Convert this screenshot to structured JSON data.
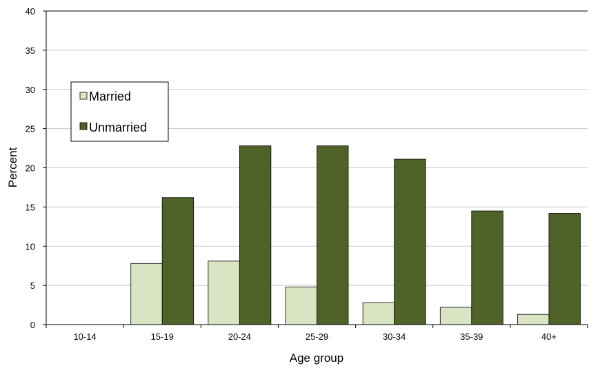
{
  "chart_data": {
    "type": "bar",
    "title": "",
    "xlabel": "Age group",
    "ylabel": "Percent",
    "categories": [
      "10-14",
      "15-19",
      "20-24",
      "25-29",
      "30-34",
      "35-39",
      "40+"
    ],
    "series": [
      {
        "name": "Married",
        "values": [
          0,
          7.8,
          8.1,
          4.8,
          2.8,
          2.2,
          1.3
        ],
        "color": "#d9e5c2"
      },
      {
        "name": "Unmarried",
        "values": [
          0,
          16.2,
          22.8,
          22.8,
          21.1,
          14.5,
          14.2
        ],
        "color": "#4f6228"
      }
    ],
    "ylim": [
      0,
      40
    ],
    "yticks": [
      0,
      5,
      10,
      15,
      20,
      25,
      30,
      35,
      40
    ],
    "grid": true,
    "legend": "upper-left"
  }
}
